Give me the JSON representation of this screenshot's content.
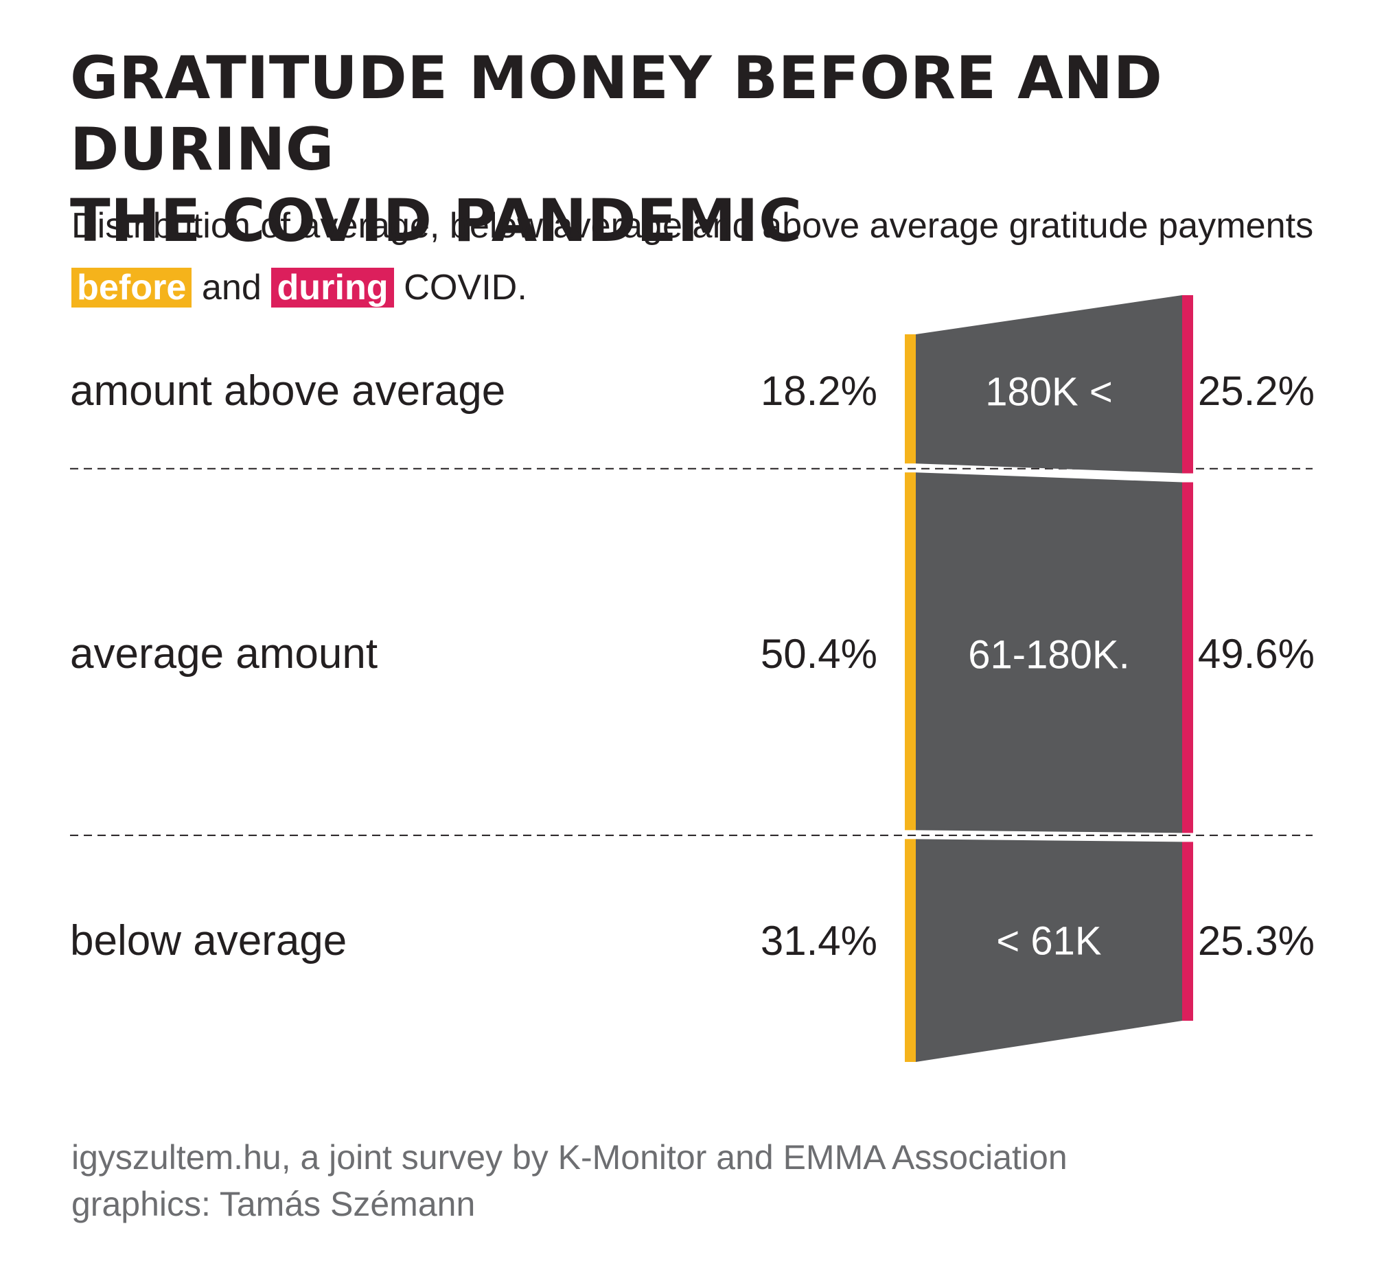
{
  "title_line1": "GRATITUDE MONEY BEFORE AND DURING",
  "title_line2": "THE COVID PANDEMIC",
  "subtitle": {
    "line1": "Distribution of average, below average and above average gratitude payments",
    "before": "before",
    "and": "and",
    "during": "during",
    "tail": "COVID."
  },
  "colors": {
    "before": "#f5b31b",
    "during": "#dc1f5c",
    "band": "#58595b",
    "band_text": "#ffffff"
  },
  "chart_data": {
    "type": "bar",
    "chart_style": "stacked-slope",
    "categories": [
      "amount above average",
      "average amount",
      "below average"
    ],
    "band_labels": [
      "180K <",
      "61-180K.",
      "< 61K"
    ],
    "series": [
      {
        "name": "before",
        "values": [
          18.2,
          50.4,
          31.4
        ],
        "labels": [
          "18.2%",
          "50.4%",
          "31.4%"
        ]
      },
      {
        "name": "during",
        "values": [
          25.2,
          49.6,
          25.3
        ],
        "labels": [
          "25.2%",
          "49.6%",
          "25.3%"
        ]
      }
    ]
  },
  "footer": {
    "source": "igyszultem.hu, a joint survey by K-Monitor and EMMA Association",
    "credit": "graphics: Tamás Szémann"
  }
}
